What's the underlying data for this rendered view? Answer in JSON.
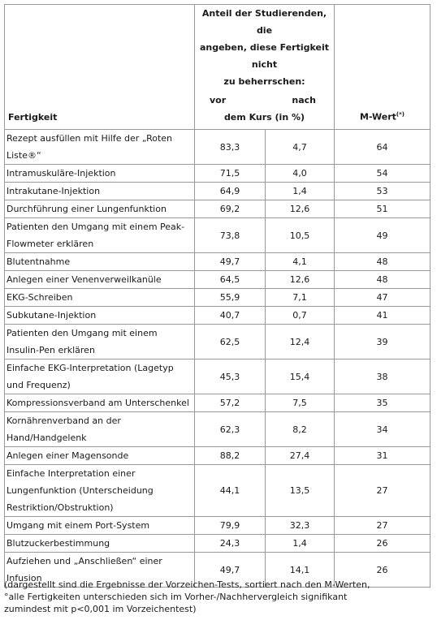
{
  "header": {
    "skill_col": "Fertigkeit",
    "group_line1": "Anteil der Studierenden, die",
    "group_line2": "angeben, diese Fertigkeit nicht",
    "group_line3": "zu beherrschen:",
    "before": "vor",
    "after": "nach",
    "unit": "dem Kurs (in %)",
    "mvalue": "M-Wert",
    "mvalue_sup": "(*)"
  },
  "rows": [
    {
      "skill": "Rezept ausfüllen mit Hilfe der „Roten Liste®“",
      "before": "83,3",
      "after": "4,7",
      "m": "64"
    },
    {
      "skill": "Intramuskuläre-Injektion",
      "before": "71,5",
      "after": "4,0",
      "m": "54"
    },
    {
      "skill": "Intrakutane-Injektion",
      "before": "64,9",
      "after": "1,4",
      "m": "53"
    },
    {
      "skill": "Durchführung einer Lungenfunktion",
      "before": "69,2",
      "after": "12,6",
      "m": "51"
    },
    {
      "skill": "Patienten den Umgang mit einem Peak-Flowmeter erklären",
      "before": "73,8",
      "after": "10,5",
      "m": "49"
    },
    {
      "skill": "Blutentnahme",
      "before": "49,7",
      "after": "4,1",
      "m": "48"
    },
    {
      "skill": "Anlegen einer Venenverweilkanüle",
      "before": "64,5",
      "after": "12,6",
      "m": "48"
    },
    {
      "skill": "EKG-Schreiben",
      "before": "55,9",
      "after": "7,1",
      "m": "47"
    },
    {
      "skill": "Subkutane-Injektion",
      "before": "40,7",
      "after": "0,7",
      "m": "41"
    },
    {
      "skill": "Patienten den Umgang mit einem Insulin-Pen erklären",
      "before": "62,5",
      "after": "12,4",
      "m": "39"
    },
    {
      "skill": "Einfache EKG-Interpretation (Lagetyp und Frequenz)",
      "before": "45,3",
      "after": "15,4",
      "m": "38"
    },
    {
      "skill": "Kompressionsverband am Unterschenkel",
      "before": "57,2",
      "after": "7,5",
      "m": "35"
    },
    {
      "skill": "Kornährenverband an der Hand/Handgelenk",
      "before": "62,3",
      "after": "8,2",
      "m": "34"
    },
    {
      "skill": "Anlegen einer Magensonde",
      "before": "88,2",
      "after": "27,4",
      "m": "31"
    },
    {
      "skill": "Einfache Interpretation einer Lungenfunktion (Unterscheidung Restriktion/Obstruktion)",
      "before": "44,1",
      "after": "13,5",
      "m": "27"
    },
    {
      "skill": "Umgang mit einem Port-System",
      "before": "79,9",
      "after": "32,3",
      "m": "27"
    },
    {
      "skill": "Blutzuckerbestimmung",
      "before": "24,3",
      "after": "1,4",
      "m": "26"
    },
    {
      "skill": "Aufziehen und „Anschließen“ einer Infusion",
      "before": "49,7",
      "after": "14,1",
      "m": "26"
    }
  ],
  "footnote": {
    "line1": "(dargestellt sind die Ergebnisse der Vorzeichen-Tests, sortiert nach den M-Werten,",
    "line2": "°alle Fertigkeiten unterschieden sich im Vorher-/Nachhervergleich signifikant",
    "line3": "zumindest mit p<0,001 im Vorzeichentest)"
  }
}
